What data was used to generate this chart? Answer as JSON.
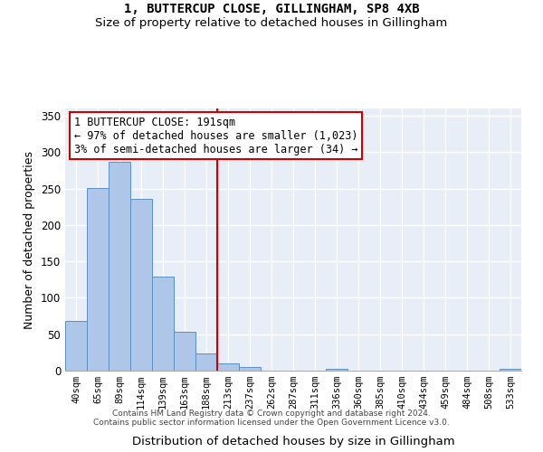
{
  "title": "1, BUTTERCUP CLOSE, GILLINGHAM, SP8 4XB",
  "subtitle": "Size of property relative to detached houses in Gillingham",
  "xlabel": "Distribution of detached houses by size in Gillingham",
  "ylabel": "Number of detached properties",
  "footer_line1": "Contains HM Land Registry data © Crown copyright and database right 2024.",
  "footer_line2": "Contains public sector information licensed under the Open Government Licence v3.0.",
  "categories": [
    "40sqm",
    "65sqm",
    "89sqm",
    "114sqm",
    "139sqm",
    "163sqm",
    "188sqm",
    "213sqm",
    "237sqm",
    "262sqm",
    "287sqm",
    "311sqm",
    "336sqm",
    "360sqm",
    "385sqm",
    "410sqm",
    "434sqm",
    "459sqm",
    "484sqm",
    "508sqm",
    "533sqm"
  ],
  "values": [
    68,
    251,
    287,
    236,
    129,
    53,
    24,
    10,
    5,
    0,
    0,
    0,
    3,
    0,
    0,
    0,
    0,
    0,
    0,
    0,
    3
  ],
  "bar_color": "#aec6e8",
  "bar_edge_color": "#5a8fc2",
  "vline_color": "#cc0000",
  "annotation_box_text": "1 BUTTERCUP CLOSE: 191sqm\n← 97% of detached houses are smaller (1,023)\n3% of semi-detached houses are larger (34) →",
  "annotation_box_color": "#cc0000",
  "annotation_text_fontsize": 8.5,
  "ylim": [
    0,
    360
  ],
  "yticks": [
    0,
    50,
    100,
    150,
    200,
    250,
    300,
    350
  ],
  "background_color": "#e8eef8",
  "grid_color": "#ffffff",
  "title_fontsize": 10,
  "subtitle_fontsize": 9.5,
  "xlabel_fontsize": 9.5,
  "ylabel_fontsize": 9
}
